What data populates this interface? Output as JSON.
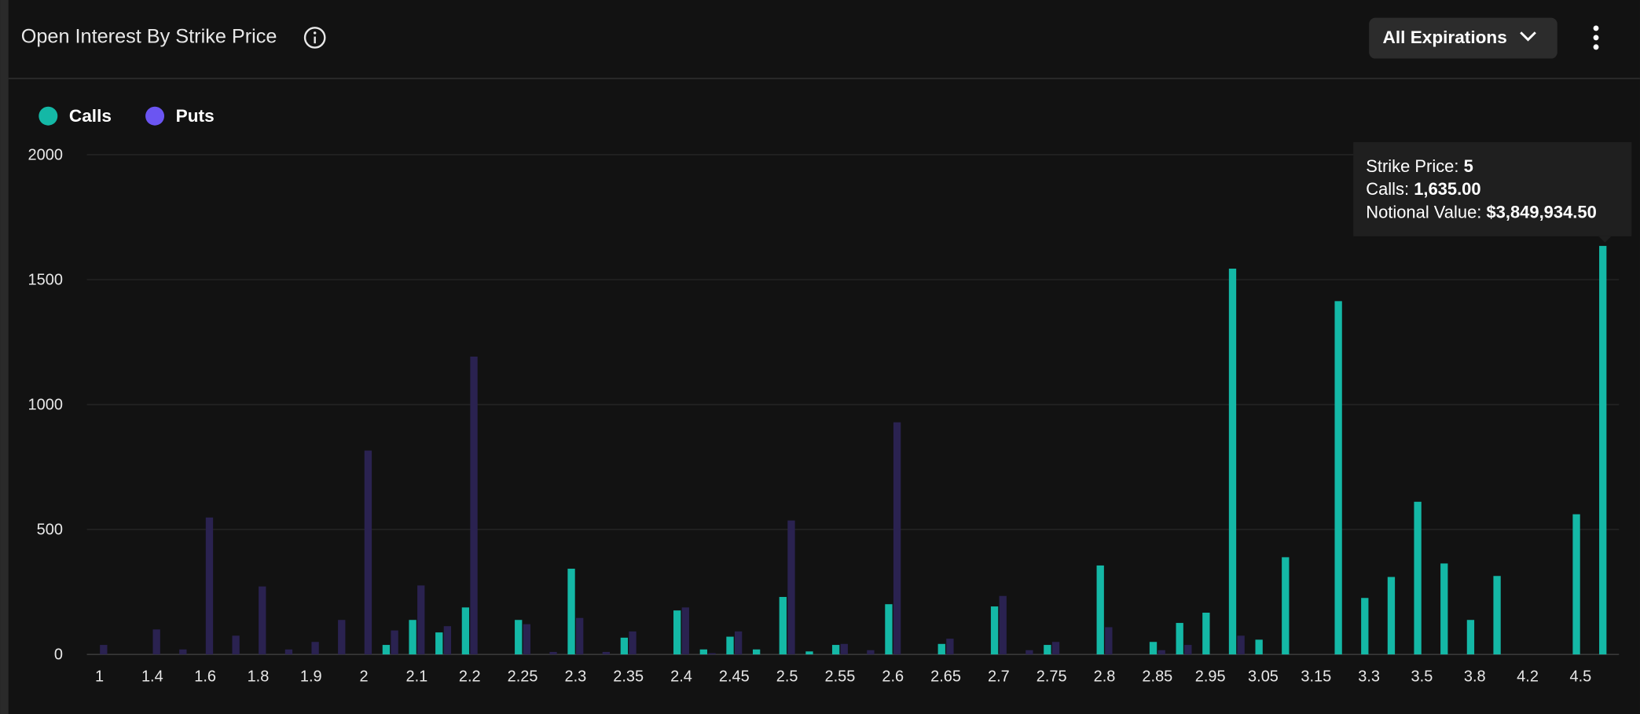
{
  "chart_data": {
    "type": "bar",
    "title": "Open Interest By Strike Price",
    "filter": "All Expirations",
    "categories": [
      "1",
      null,
      "1.4",
      null,
      "1.6",
      null,
      "1.8",
      null,
      "1.9",
      null,
      "2",
      null,
      "2.1",
      null,
      "2.2",
      null,
      "2.25",
      null,
      "2.3",
      null,
      "2.35",
      null,
      "2.4",
      null,
      "2.45",
      null,
      "2.5",
      null,
      "2.55",
      null,
      "2.6",
      null,
      "2.65",
      null,
      "2.7",
      null,
      "2.75",
      null,
      "2.8",
      null,
      "2.85",
      null,
      "2.95",
      null,
      "3.05",
      null,
      "3.15",
      null,
      "3.3",
      null,
      "3.5",
      null,
      "3.8",
      null,
      "4.2",
      null,
      "4.5",
      null
    ],
    "series": [
      {
        "name": "Calls",
        "color": "#14b8a6",
        "bar_color": "#14b8a6",
        "values": [
          0,
          0,
          0,
          0,
          0,
          0,
          0,
          0,
          0,
          0,
          0,
          38,
          138,
          88,
          188,
          0,
          138,
          0,
          343,
          0,
          67,
          0,
          176,
          20,
          71,
          20,
          230,
          12,
          38,
          0,
          201,
          0,
          42,
          0,
          192,
          0,
          38,
          0,
          356,
          0,
          50,
          126,
          167,
          1544,
          59,
          389,
          0,
          1414,
          226,
          310,
          611,
          364,
          138,
          314,
          0,
          0,
          561,
          1635
        ]
      },
      {
        "name": "Puts",
        "color": "#6b55f2",
        "bar_color": "#2a2250",
        "values": [
          38,
          0,
          100,
          20,
          548,
          75,
          272,
          20,
          50,
          138,
          816,
          96,
          276,
          113,
          1192,
          0,
          121,
          10,
          146,
          10,
          92,
          0,
          188,
          5,
          92,
          0,
          536,
          0,
          42,
          17,
          929,
          0,
          63,
          0,
          234,
          17,
          50,
          0,
          109,
          0,
          17,
          38,
          0,
          75,
          0,
          0,
          0,
          0,
          0,
          0,
          0,
          0,
          0,
          0,
          0,
          0,
          0,
          0
        ]
      }
    ],
    "ylim": [
      0,
      2000
    ],
    "yticks": [
      0,
      500,
      1000,
      1500,
      2000
    ],
    "grid": true,
    "tooltip": {
      "category_index": 57,
      "lines": [
        {
          "label": "Strike Price:",
          "value": "5"
        },
        {
          "label": "Calls:",
          "value": "1,635.00"
        },
        {
          "label": "Notional Value:",
          "value": "$3,849,934.50"
        }
      ]
    }
  }
}
